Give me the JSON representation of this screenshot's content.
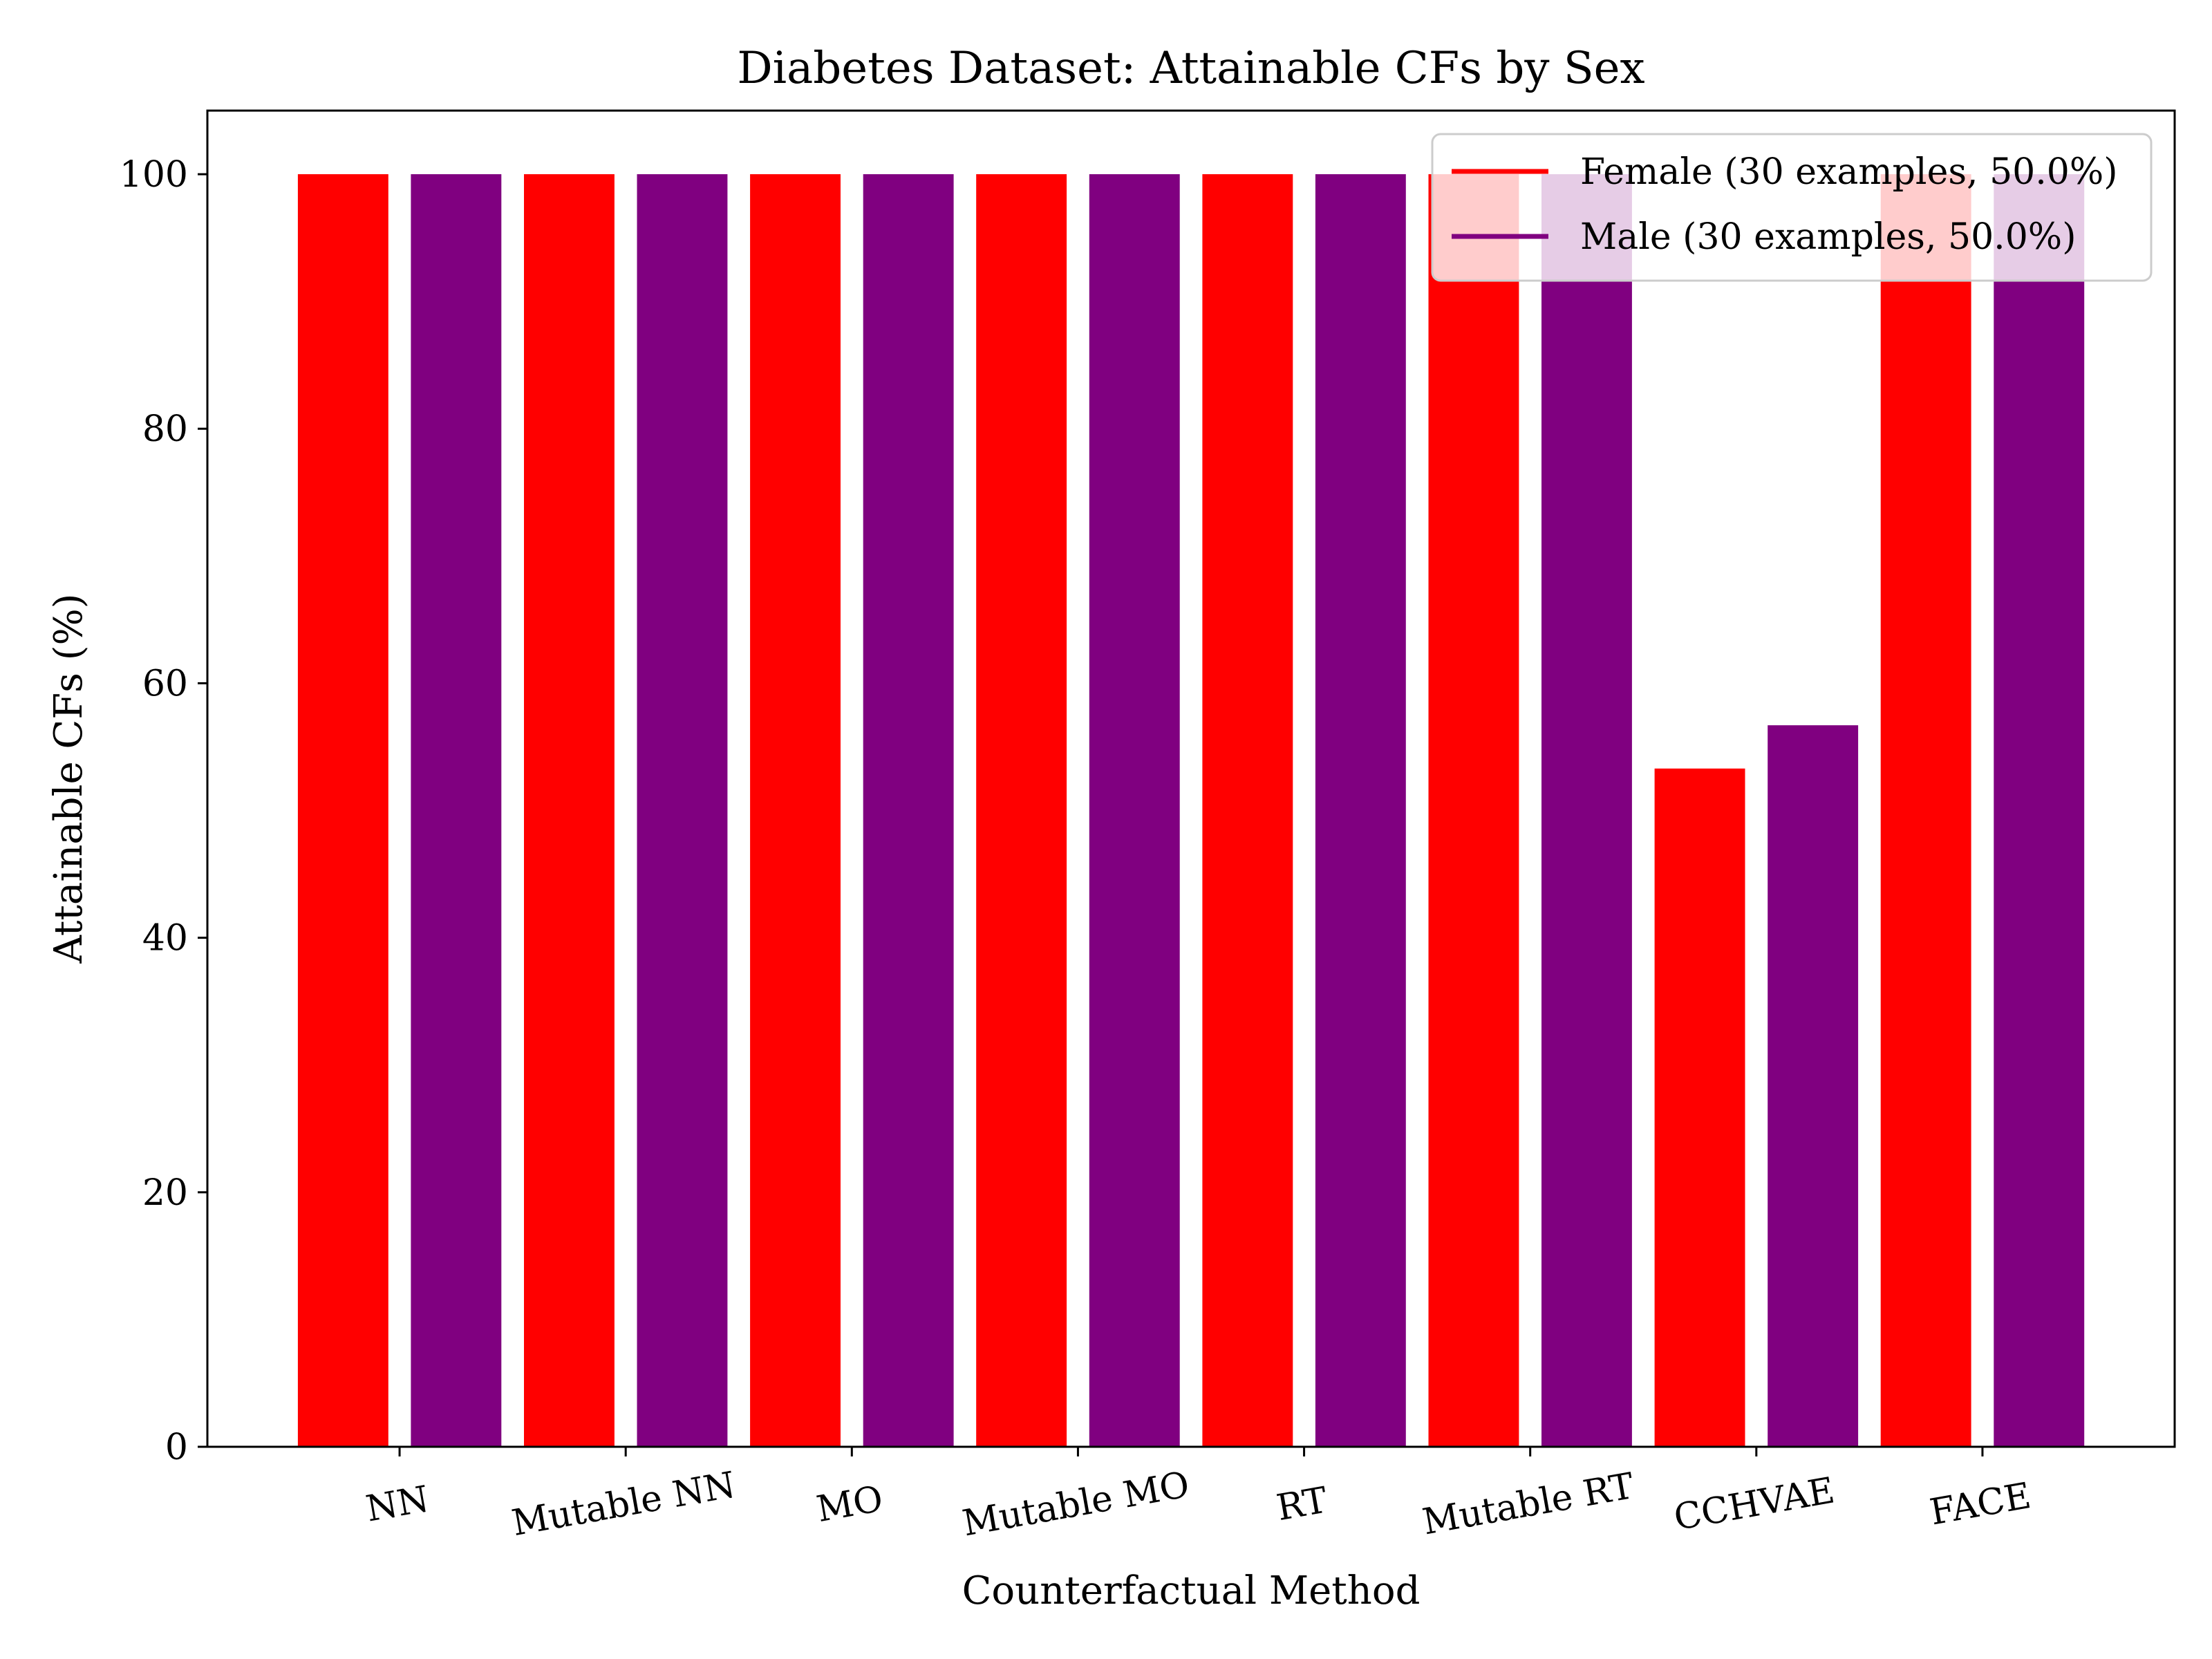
{
  "chart_data": {
    "type": "bar",
    "title": "Diabetes Dataset: Attainable CFs by Sex",
    "xlabel": "Counterfactual Method",
    "ylabel": "Attainable CFs (%)",
    "categories": [
      "NN",
      "Mutable NN",
      "MO",
      "Mutable MO",
      "RT",
      "Mutable RT",
      "CCHVAE",
      "FACE"
    ],
    "series": [
      {
        "name": "Female (30 examples, 50.0%)",
        "color": "#ff0000",
        "values": [
          100,
          100,
          100,
          100,
          100,
          100,
          53.3,
          100
        ]
      },
      {
        "name": "Male (30 examples, 50.0%)",
        "color": "#800080",
        "values": [
          100,
          100,
          100,
          100,
          100,
          100,
          56.7,
          100
        ]
      }
    ],
    "ylim": [
      0,
      105
    ],
    "yticks": [
      0,
      20,
      40,
      60,
      80,
      100
    ],
    "grid": false,
    "legend_position": "top-right",
    "xtick_rotation_deg": -10
  }
}
